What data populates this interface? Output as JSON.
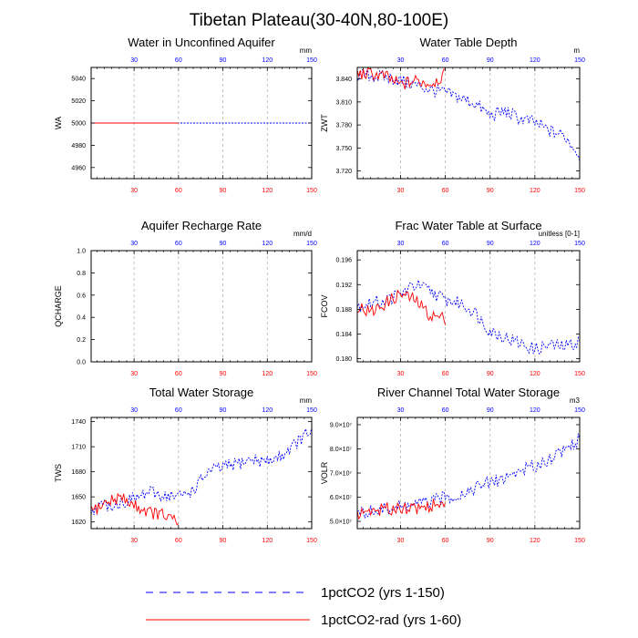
{
  "title": "Tibetan Plateau(30-40N,80-100E)",
  "colors": {
    "blue_series": "#0000ff",
    "red_series": "#ff0000",
    "grid": "#b4b4b4",
    "axis": "#000000"
  },
  "legend": [
    {
      "label": "1pctCO2 (yrs 1-150)",
      "color": "#0000ff",
      "style": "dashed"
    },
    {
      "label": "1pctCO2-rad (yrs 1-60)",
      "color": "#ff0000",
      "style": "solid"
    }
  ],
  "chart_data": [
    {
      "type": "line",
      "title": "Water in Unconfined Aquifer",
      "ylabel": "WA",
      "units": "mm",
      "xlim": [
        1,
        150
      ],
      "ylim": [
        4950,
        5050
      ],
      "yticks": [
        "4960",
        "4980",
        "5000",
        "5020",
        "5040"
      ],
      "ytick_values": [
        4960,
        4980,
        5000,
        5020,
        5040
      ],
      "xticks_bottom": [
        "30",
        "60",
        "90",
        "120",
        "150"
      ],
      "xticks_top": [
        "30",
        "60",
        "90",
        "120",
        "150"
      ],
      "xtick_values": [
        30,
        60,
        90,
        120,
        150
      ],
      "grid": "vertical dashed at x ticks",
      "series": [
        {
          "name": "1pctCO2 (yrs 1-150)",
          "color": "#0000ff",
          "style": "dashed",
          "x": [
            1,
            150
          ],
          "y": [
            5000,
            5000
          ]
        },
        {
          "name": "1pctCO2-rad (yrs 1-60)",
          "color": "#ff0000",
          "style": "solid",
          "x": [
            1,
            60
          ],
          "y": [
            5000,
            5000
          ]
        }
      ]
    },
    {
      "type": "line",
      "title": "Water Table Depth",
      "ylabel": "ZWT",
      "units": "m",
      "xlim": [
        1,
        150
      ],
      "ylim": [
        3.71,
        3.855
      ],
      "yticks": [
        "3.720",
        "3.750",
        "3.780",
        "3.810",
        "3.840"
      ],
      "ytick_values": [
        3.72,
        3.75,
        3.78,
        3.81,
        3.84
      ],
      "xticks_bottom": [
        "30",
        "60",
        "90",
        "120",
        "150"
      ],
      "xticks_top": [
        "30",
        "60",
        "90",
        "120",
        "150"
      ],
      "xtick_values": [
        30,
        60,
        90,
        120,
        150
      ],
      "grid": "vertical dashed at x ticks",
      "series": [
        {
          "name": "1pctCO2 (yrs 1-150)",
          "color": "#0000ff",
          "style": "dashed",
          "x": [
            1,
            10,
            20,
            30,
            40,
            50,
            60,
            70,
            80,
            90,
            100,
            110,
            120,
            130,
            140,
            150
          ],
          "y": [
            3.845,
            3.844,
            3.842,
            3.838,
            3.832,
            3.826,
            3.822,
            3.815,
            3.808,
            3.792,
            3.798,
            3.788,
            3.783,
            3.772,
            3.766,
            3.74
          ]
        },
        {
          "name": "1pctCO2-rad (yrs 1-60)",
          "color": "#ff0000",
          "style": "solid",
          "x": [
            1,
            10,
            20,
            30,
            40,
            50,
            60
          ],
          "y": [
            3.846,
            3.847,
            3.843,
            3.832,
            3.838,
            3.834,
            3.845
          ]
        }
      ]
    },
    {
      "type": "line",
      "title": "Aquifer Recharge Rate",
      "ylabel": "QCHARGE",
      "units": "mm/d",
      "xlim": [
        1,
        150
      ],
      "ylim": [
        0,
        1
      ],
      "yticks": [
        "0.0",
        "0.2",
        "0.4",
        "0.6",
        "0.8",
        "1.0"
      ],
      "ytick_values": [
        0,
        0.2,
        0.4,
        0.6,
        0.8,
        1.0
      ],
      "xticks_bottom": [
        "30",
        "60",
        "90",
        "120",
        "150"
      ],
      "xticks_top": [
        "30",
        "60",
        "90",
        "120",
        "150"
      ],
      "xtick_values": [
        30,
        60,
        90,
        120,
        150
      ],
      "grid": "vertical dashed at x ticks",
      "series": []
    },
    {
      "type": "line",
      "title": "Frac Water Table at Surface",
      "ylabel": "FCOV",
      "units": "unitless [0-1]",
      "xlim": [
        1,
        150
      ],
      "ylim": [
        0.1795,
        0.1975
      ],
      "yticks": [
        "0.180",
        "0.184",
        "0.188",
        "0.192",
        "0.196"
      ],
      "ytick_values": [
        0.18,
        0.184,
        0.188,
        0.192,
        0.196
      ],
      "xticks_bottom": [
        "30",
        "60",
        "90",
        "120",
        "150"
      ],
      "xticks_top": [
        "30",
        "60",
        "90",
        "120",
        "150"
      ],
      "xtick_values": [
        30,
        60,
        90,
        120,
        150
      ],
      "grid": "vertical dashed at x ticks",
      "series": [
        {
          "name": "1pctCO2 (yrs 1-150)",
          "color": "#0000ff",
          "style": "dashed",
          "x": [
            1,
            10,
            20,
            30,
            40,
            50,
            60,
            70,
            80,
            90,
            100,
            110,
            120,
            130,
            140,
            150
          ],
          "y": [
            0.1885,
            0.189,
            0.1895,
            0.1905,
            0.192,
            0.191,
            0.1895,
            0.189,
            0.1875,
            0.1845,
            0.1835,
            0.1825,
            0.1815,
            0.1822,
            0.182,
            0.1828
          ]
        },
        {
          "name": "1pctCO2-rad (yrs 1-60)",
          "color": "#ff0000",
          "style": "solid",
          "x": [
            1,
            10,
            20,
            30,
            40,
            50,
            60
          ],
          "y": [
            0.1885,
            0.1875,
            0.189,
            0.1905,
            0.1895,
            0.187,
            0.1865
          ]
        }
      ]
    },
    {
      "type": "line",
      "title": "Total Water Storage",
      "ylabel": "TWS",
      "units": "mm",
      "xlim": [
        1,
        150
      ],
      "ylim": [
        1612,
        1745
      ],
      "yticks": [
        "1620",
        "1650",
        "1680",
        "1710",
        "1740"
      ],
      "ytick_values": [
        1620,
        1650,
        1680,
        1710,
        1740
      ],
      "xticks_bottom": [
        "30",
        "60",
        "90",
        "120",
        "150"
      ],
      "xticks_top": [
        "30",
        "60",
        "90",
        "120",
        "150"
      ],
      "xtick_values": [
        30,
        60,
        90,
        120,
        150
      ],
      "grid": "vertical dashed at x ticks",
      "series": [
        {
          "name": "1pctCO2 (yrs 1-150)",
          "color": "#0000ff",
          "style": "dashed",
          "x": [
            1,
            10,
            20,
            30,
            40,
            50,
            60,
            70,
            80,
            90,
            100,
            110,
            120,
            130,
            140,
            150
          ],
          "y": [
            1635,
            1640,
            1642,
            1648,
            1655,
            1652,
            1650,
            1658,
            1680,
            1685,
            1690,
            1695,
            1692,
            1700,
            1715,
            1730
          ]
        },
        {
          "name": "1pctCO2-rad (yrs 1-60)",
          "color": "#ff0000",
          "style": "solid",
          "x": [
            1,
            10,
            20,
            30,
            40,
            50,
            60
          ],
          "y": [
            1632,
            1642,
            1650,
            1640,
            1632,
            1628,
            1618
          ]
        }
      ]
    },
    {
      "type": "line",
      "title": "River Channel Total Water Storage",
      "ylabel": "VOLR",
      "units": "m3",
      "xlim": [
        1,
        150
      ],
      "ylim": [
        47000000,
        93000000
      ],
      "yticks": [
        "5.0×10⁷",
        "6.0×10⁷",
        "7.0×10⁷",
        "8.0×10⁷",
        "9.0×10⁷"
      ],
      "ytick_values": [
        50000000,
        60000000,
        70000000,
        80000000,
        90000000
      ],
      "xticks_bottom": [
        "30",
        "60",
        "90",
        "120",
        "150"
      ],
      "xticks_top": [
        "30",
        "60",
        "90",
        "120",
        "150"
      ],
      "xtick_values": [
        30,
        60,
        90,
        120,
        150
      ],
      "grid": "vertical dashed at x ticks",
      "series": [
        {
          "name": "1pctCO2 (yrs 1-150)",
          "color": "#0000ff",
          "style": "dashed",
          "x": [
            1,
            10,
            20,
            30,
            40,
            50,
            60,
            70,
            80,
            90,
            100,
            110,
            120,
            130,
            140,
            150
          ],
          "y": [
            53000000,
            54000000,
            55000000,
            56000000,
            57000000,
            58000000,
            60000000,
            61000000,
            64000000,
            66000000,
            68000000,
            71000000,
            73000000,
            76000000,
            80000000,
            84000000
          ]
        },
        {
          "name": "1pctCO2-rad (yrs 1-60)",
          "color": "#ff0000",
          "style": "solid",
          "x": [
            1,
            10,
            20,
            30,
            40,
            50,
            60
          ],
          "y": [
            53000000,
            54500000,
            55000000,
            56000000,
            55500000,
            56500000,
            57000000
          ]
        }
      ]
    }
  ]
}
